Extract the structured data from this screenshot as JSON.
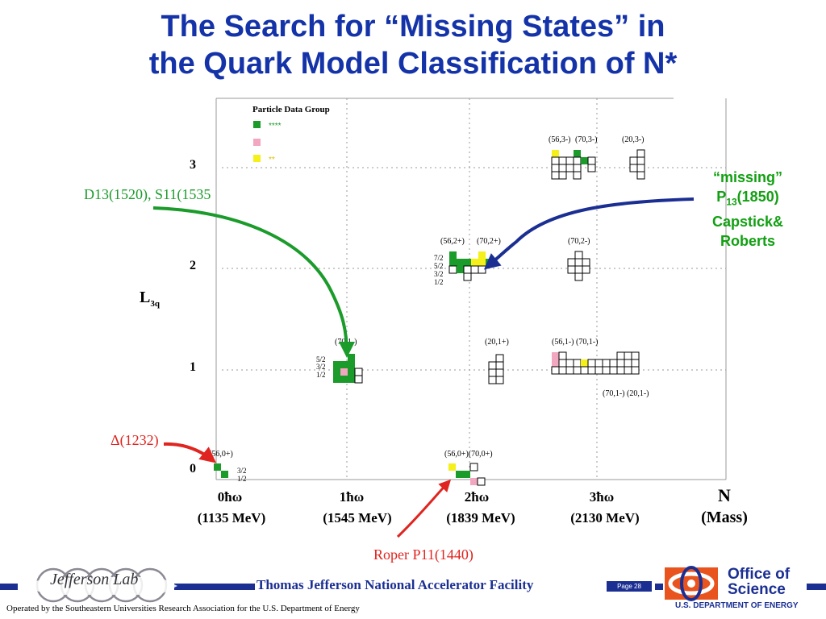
{
  "title": {
    "line1": "The Search for “Missing States” in",
    "line2": "the Quark Model Classification of N*"
  },
  "legend": {
    "header": "Particle Data Group",
    "items": [
      {
        "color": "#1a9b2a",
        "label": "****"
      },
      {
        "color": "#f2a6c0",
        "label": ""
      },
      {
        "color": "#f5ef1a",
        "label": "**"
      }
    ]
  },
  "axes": {
    "y_label_main": "L",
    "y_label_sub": "3q",
    "y_ticks": [
      "0",
      "1",
      "2",
      "3"
    ],
    "x_ticks": [
      {
        "top": "0ħω",
        "bottom": "(1135 MeV)"
      },
      {
        "top": "1ħω",
        "bottom": "(1545 MeV)"
      },
      {
        "top": "2ħω",
        "bottom": "(1839 MeV)"
      },
      {
        "top": "3ħω",
        "bottom": "(2130 MeV)"
      }
    ],
    "x_label_top": "N",
    "x_label_bottom": "(Mass)"
  },
  "multiplet_labels": {
    "l0_n0": "(56,0+)",
    "l0_n2": "(56,0+)(70,0+)",
    "l1_n1": "(70,1-)",
    "l1_n2": "(20,1+)",
    "l1_n3_top": "(56,1-) (70,1-)",
    "l1_n3_bottom": "(70,1-) (20,1-)",
    "l2_n2a": "(56,2+)",
    "l2_n2b": "(70,2+)",
    "l2_n2c": "(70,2-)",
    "l3_a": "(56,3-)",
    "l3_b": "(70,3-)",
    "l3_c": "(20,3-)"
  },
  "spin_labels": {
    "l0": [
      "3/2",
      "1/2"
    ],
    "l1": [
      "5/2",
      "3/2",
      "1/2"
    ],
    "l2": [
      "7/2",
      "5/2",
      "3/2",
      "1/2"
    ]
  },
  "annotations": {
    "d13_s11": "D13(1520), S11(1535",
    "delta": "Δ(1232)",
    "roper": "Roper P11(1440)"
  },
  "missing_note": {
    "line1": "“missing”",
    "line2_main": "P",
    "line2_sub": "13",
    "line2_rest": "(1850)",
    "line3": "Capstick&",
    "line4": "Roberts"
  },
  "footer": {
    "facility": "Thomas Jefferson National Accelerator Facility",
    "page": "Page 28",
    "jlab_logo_text": "Jefferson Lab",
    "office_line1": "Office of",
    "office_line2": "Science",
    "doe": "U.S. DEPARTMENT OF ENERGY",
    "operated_by": "Operated by the Southeastern Universities Research Association for the U.S. Department of  Energy"
  },
  "colors": {
    "title": "#1433a8",
    "green": "#1a9b2a",
    "pink": "#f2a6c0",
    "yellow": "#f5ef1a",
    "red": "#e0241f",
    "navy": "#1b2f93",
    "missing_note": "#11a011"
  }
}
